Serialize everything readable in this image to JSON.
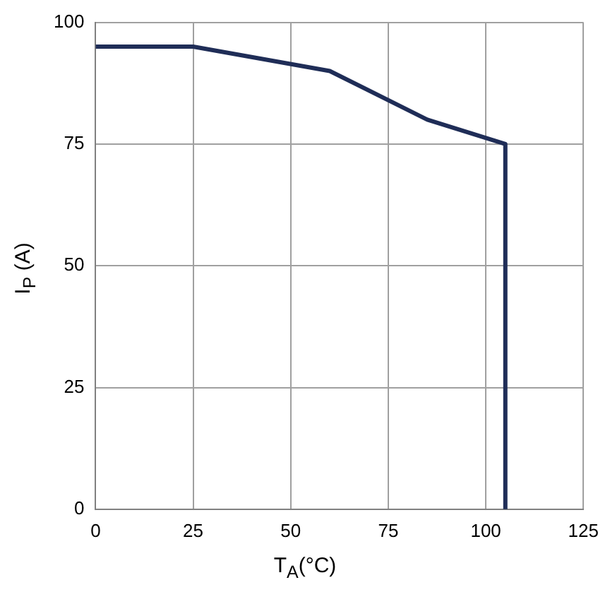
{
  "chart_data": {
    "type": "line",
    "xlabel": "T$_{A}$(°C)",
    "ylabel": "I$_{P}$ (A)",
    "series": [
      {
        "color": "#1f2d57",
        "x": [
          0,
          25,
          60,
          85,
          105,
          105
        ],
        "values": [
          95,
          95,
          90,
          80,
          75,
          0
        ]
      }
    ],
    "xlim": [
      0,
      125
    ],
    "xticks": [
      0,
      25,
      50,
      75,
      100,
      125
    ],
    "ylim": [
      0,
      100
    ],
    "yticks": [
      0,
      25,
      50,
      75,
      100
    ],
    "grid": true,
    "marker": "none",
    "line_style": "solid",
    "legend": false
  }
}
